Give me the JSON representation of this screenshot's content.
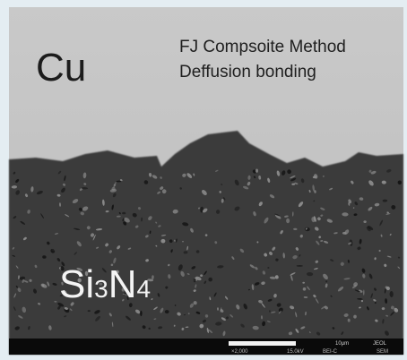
{
  "labels": {
    "cu": "Cu",
    "method": "FJ Compsoite Method",
    "bonding": "Deffusion bonding"
  },
  "si3n4": {
    "si": "Si",
    "sub1": "3",
    "n": "N",
    "sub2": "4"
  },
  "info_bar": {
    "scale": "10μm",
    "brand": "JEOL",
    "magnification": "×2,000",
    "voltage": "15.0kV",
    "mode": "BEI-C",
    "type": "SEM"
  }
}
